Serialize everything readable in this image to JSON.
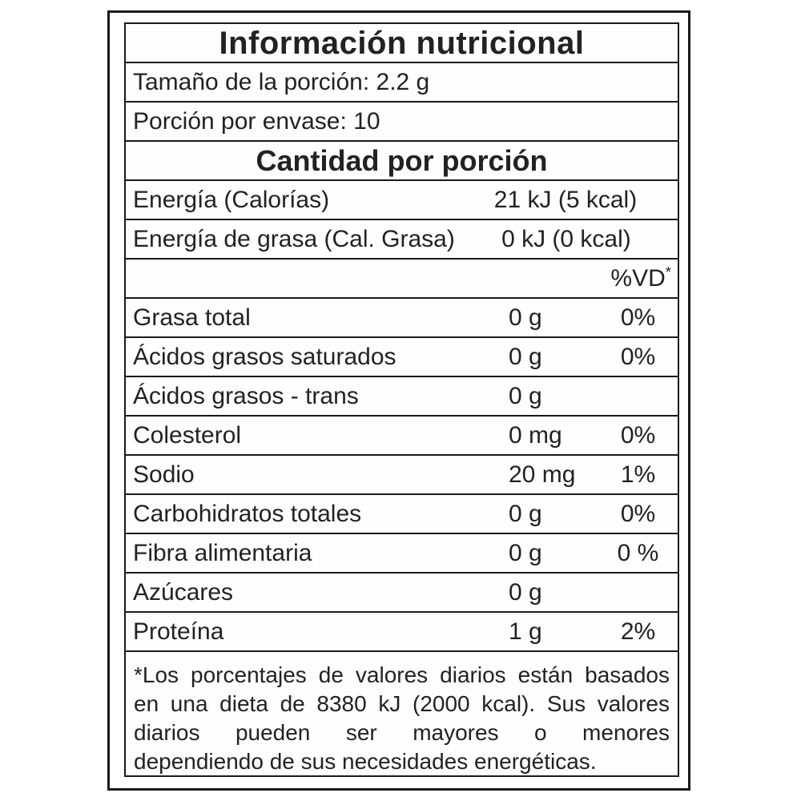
{
  "colors": {
    "border": "#1a1a1a",
    "text": "#222222",
    "background": "#ffffff"
  },
  "label": {
    "title": "Información nutricional",
    "serving_size": "Tamaño de la porción: 2.2 g",
    "servings_per_container": "Porción por envase: 10",
    "section_header": "Cantidad por porción",
    "energy_rows": [
      {
        "name": "Energía (Calorías)",
        "value": "21 kJ (5 kcal)"
      },
      {
        "name": "Energía de grasa (Cal. Grasa)",
        "value": "0 kJ (0 kcal)"
      }
    ],
    "daily_value_header": "%VD",
    "daily_value_footnote_mark": "*",
    "nutrients": [
      {
        "name": "Grasa total",
        "amount": "0 g",
        "daily_value": "0%"
      },
      {
        "name": "Ácidos grasos saturados",
        "amount": "0 g",
        "daily_value": "0%"
      },
      {
        "name": "Ácidos grasos - trans",
        "amount": "0 g",
        "daily_value": ""
      },
      {
        "name": "Colesterol",
        "amount": "0 mg",
        "daily_value": "0%"
      },
      {
        "name": "Sodio",
        "amount": "20 mg",
        "daily_value": "1%"
      },
      {
        "name": "Carbohidratos totales",
        "amount": "0 g",
        "daily_value": "0%"
      },
      {
        "name": "Fibra alimentaria",
        "amount": "0 g",
        "daily_value": "0 %"
      },
      {
        "name": "Azúcares",
        "amount": "0 g",
        "daily_value": ""
      },
      {
        "name": "Proteína",
        "amount": "1 g",
        "daily_value": "2%"
      }
    ],
    "footnote_lines": [
      "*Los porcentajes de valores diarios están basados",
      "en una dieta de 8380 kJ (2000 kcal). Sus valores",
      "diarios pueden ser mayores o menores",
      "dependiendo de sus necesidades energéticas."
    ]
  }
}
